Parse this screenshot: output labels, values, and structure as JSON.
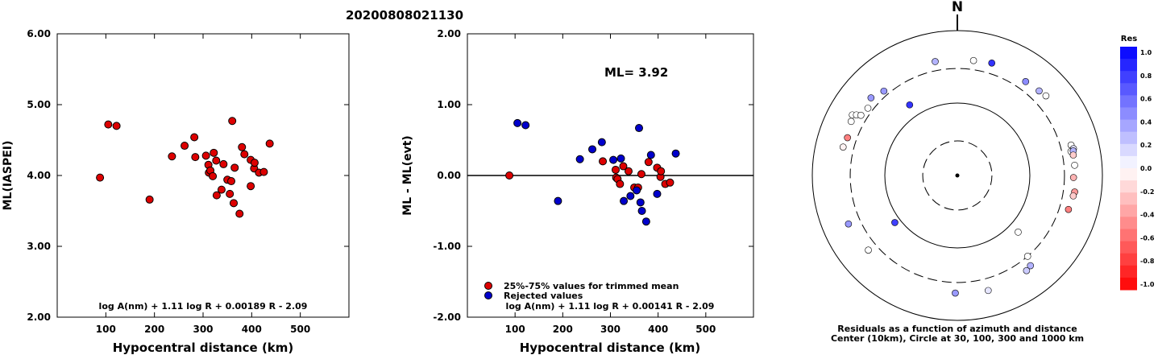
{
  "title": "20200808021130",
  "chart_data": [
    {
      "type": "scatter",
      "ylabel": "ML(IASPEI)",
      "xlabel": "Hypocentral distance (km)",
      "xlim": [
        0,
        600
      ],
      "ylim": [
        2.0,
        6.0
      ],
      "x_ticks": [
        "100",
        "200",
        "300",
        "400",
        "500"
      ],
      "x_tick_values": [
        100,
        200,
        300,
        400,
        500
      ],
      "y_ticks": [
        "2.00",
        "3.00",
        "4.00",
        "5.00",
        "6.00"
      ],
      "y_tick_values": [
        2,
        3,
        4,
        5,
        6
      ],
      "formula": "log A(nm) + 1.11 log R + 0.00189 R - 2.09",
      "marker_color": "#dd0000",
      "points": [
        [
          88,
          3.97
        ],
        [
          105,
          4.72
        ],
        [
          122,
          4.7
        ],
        [
          190,
          3.66
        ],
        [
          236,
          4.27
        ],
        [
          262,
          4.42
        ],
        [
          282,
          4.54
        ],
        [
          284,
          4.26
        ],
        [
          306,
          4.28
        ],
        [
          311,
          4.15
        ],
        [
          312,
          4.04
        ],
        [
          315,
          4.07
        ],
        [
          320,
          3.99
        ],
        [
          322,
          4.32
        ],
        [
          327,
          4.21
        ],
        [
          328,
          3.72
        ],
        [
          338,
          3.8
        ],
        [
          342,
          4.16
        ],
        [
          350,
          3.94
        ],
        [
          355,
          3.74
        ],
        [
          358,
          3.92
        ],
        [
          360,
          4.77
        ],
        [
          363,
          3.61
        ],
        [
          365,
          4.11
        ],
        [
          375,
          3.46
        ],
        [
          380,
          4.4
        ],
        [
          385,
          4.3
        ],
        [
          398,
          3.85
        ],
        [
          398,
          4.22
        ],
        [
          405,
          4.1
        ],
        [
          406,
          4.18
        ],
        [
          415,
          4.04
        ],
        [
          425,
          4.05
        ],
        [
          437,
          4.45
        ]
      ]
    },
    {
      "type": "scatter",
      "ylabel": "ML - ML(evt)",
      "xlabel": "Hypocentral distance (km)",
      "xlim": [
        0,
        600
      ],
      "ylim": [
        -2.0,
        2.0
      ],
      "x_ticks": [
        "100",
        "200",
        "300",
        "400",
        "500"
      ],
      "x_tick_values": [
        100,
        200,
        300,
        400,
        500
      ],
      "y_ticks": [
        "-2.00",
        "-1.00",
        "0.00",
        "1.00",
        "2.00"
      ],
      "y_tick_values": [
        -2,
        -1,
        0,
        1,
        2
      ],
      "annotation": "ML= 3.92",
      "legend": [
        "25%-75% values for trimmed mean",
        "Rejected values"
      ],
      "legend_colors": [
        "#dd0000",
        "#0000cc"
      ],
      "formula": "log A(nm) + 1.11 log R + 0.00141 R - 2.09",
      "series": [
        {
          "name": "25%-75% values for trimmed mean",
          "color": "#dd0000",
          "points": [
            [
              88,
              0.0
            ],
            [
              284,
              0.2
            ],
            [
              311,
              0.08
            ],
            [
              312,
              -0.03
            ],
            [
              315,
              -0.05
            ],
            [
              320,
              -0.12
            ],
            [
              327,
              0.13
            ],
            [
              338,
              0.06
            ],
            [
              350,
              -0.17
            ],
            [
              358,
              -0.17
            ],
            [
              365,
              0.02
            ],
            [
              380,
              0.19
            ],
            [
              398,
              0.11
            ],
            [
              405,
              -0.02
            ],
            [
              406,
              0.06
            ],
            [
              415,
              -0.12
            ],
            [
              425,
              -0.1
            ]
          ]
        },
        {
          "name": "Rejected values",
          "color": "#0000cc",
          "points": [
            [
              105,
              0.74
            ],
            [
              122,
              0.71
            ],
            [
              190,
              -0.36
            ],
            [
              236,
              0.23
            ],
            [
              262,
              0.37
            ],
            [
              282,
              0.47
            ],
            [
              306,
              0.22
            ],
            [
              322,
              0.24
            ],
            [
              328,
              -0.36
            ],
            [
              342,
              -0.29
            ],
            [
              355,
              -0.21
            ],
            [
              360,
              0.67
            ],
            [
              363,
              -0.38
            ],
            [
              366,
              -0.5
            ],
            [
              375,
              -0.65
            ],
            [
              385,
              0.29
            ],
            [
              398,
              -0.26
            ],
            [
              437,
              0.31
            ]
          ]
        }
      ]
    },
    {
      "type": "scatter",
      "subtype": "polar residuals (azimuth, distance)",
      "north_label": "N",
      "caption_line1": "Residuals as a function of azimuth and distance",
      "caption_line2": "Center (10km), Circle at 30, 100, 300 and 1000 km",
      "rings_km": [
        10,
        30,
        100,
        300,
        1000
      ],
      "dashed_rings_km": [
        30,
        300
      ],
      "colorbar": {
        "title": "Res",
        "ticks": [
          "1.0",
          "0.8",
          "0.6",
          "0.4",
          "0.2",
          "0.0",
          "-0.2",
          "-0.4",
          "-0.6",
          "-0.8",
          "-1.0"
        ],
        "max_color": "#0000ff",
        "mid_color": "#ffffff",
        "min_color": "#ff0000"
      },
      "points": [
        {
          "az": 349,
          "dist_km": 400,
          "res": 0.3
        },
        {
          "az": 8,
          "dist_km": 400,
          "res": 0.0
        },
        {
          "az": 17,
          "dist_km": 420,
          "res": 0.8
        },
        {
          "az": 36,
          "dist_km": 400,
          "res": 0.45
        },
        {
          "az": 44,
          "dist_km": 420,
          "res": 0.3
        },
        {
          "az": 48,
          "dist_km": 440,
          "res": 0.0
        },
        {
          "az": 75,
          "dist_km": 420,
          "res": 0.0
        },
        {
          "az": 77,
          "dist_km": 440,
          "res": 0.1
        },
        {
          "az": 78,
          "dist_km": 400,
          "res": 0.0
        },
        {
          "az": 78,
          "dist_km": 430,
          "res": 0.3
        },
        {
          "az": 80,
          "dist_km": 420,
          "res": -0.2
        },
        {
          "az": 85,
          "dist_km": 420,
          "res": 0.0
        },
        {
          "az": 91,
          "dist_km": 400,
          "res": -0.3
        },
        {
          "az": 98,
          "dist_km": 430,
          "res": -0.4
        },
        {
          "az": 100,
          "dist_km": 420,
          "res": -0.2
        },
        {
          "az": 107,
          "dist_km": 400,
          "res": -0.5
        },
        {
          "az": 133,
          "dist_km": 140,
          "res": 0.0
        },
        {
          "az": 139,
          "dist_km": 300,
          "res": 0.0
        },
        {
          "az": 141,
          "dist_km": 400,
          "res": 0.3
        },
        {
          "az": 144,
          "dist_km": 420,
          "res": 0.2
        },
        {
          "az": 165,
          "dist_km": 440,
          "res": 0.1
        },
        {
          "az": 181,
          "dist_km": 420,
          "res": 0.4
        },
        {
          "az": 233,
          "dist_km": 120,
          "res": 0.75
        },
        {
          "az": 230,
          "dist_km": 400,
          "res": 0.0
        },
        {
          "az": 246,
          "dist_km": 440,
          "res": 0.4
        },
        {
          "az": 284,
          "dist_km": 420,
          "res": -0.05
        },
        {
          "az": 289,
          "dist_km": 400,
          "res": -0.5
        },
        {
          "az": 297,
          "dist_km": 440,
          "res": 0.0
        },
        {
          "az": 300,
          "dist_km": 470,
          "res": 0.0
        },
        {
          "az": 301,
          "dist_km": 420,
          "res": 0.0
        },
        {
          "az": 302,
          "dist_km": 370,
          "res": 0.0
        },
        {
          "az": 307,
          "dist_km": 350,
          "res": 0.0
        },
        {
          "az": 312,
          "dist_km": 400,
          "res": 0.4
        },
        {
          "az": 319,
          "dist_km": 350,
          "res": 0.4
        },
        {
          "az": 326,
          "dist_km": 150,
          "res": 0.8
        }
      ]
    }
  ]
}
